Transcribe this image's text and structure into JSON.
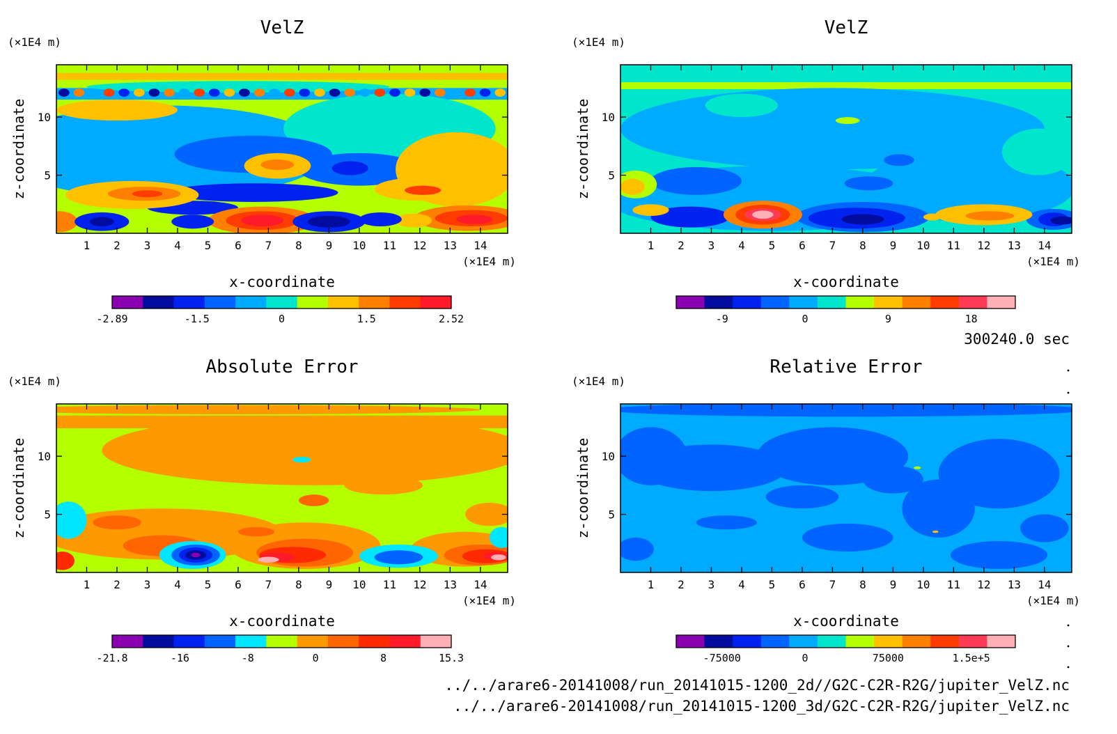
{
  "chart_data": [
    {
      "type": "heatmap",
      "title": "VelZ",
      "xlabel": "x-coordinate",
      "ylabel": "z-coordinate",
      "x_unit": "(×1E4 m)",
      "y_unit": "(×1E4 m)",
      "x_ticks": [
        "1",
        "2",
        "3",
        "4",
        "5",
        "6",
        "7",
        "8",
        "9",
        "10",
        "11",
        "12",
        "13",
        "14"
      ],
      "y_ticks": [
        "5",
        "10"
      ],
      "xlim": [
        0,
        14.9
      ],
      "ylim": [
        0,
        14.5
      ],
      "colorbar": {
        "colors": [
          "#8a00b0",
          "#000c9e",
          "#0022ee",
          "#0064ff",
          "#00aaff",
          "#00e6cc",
          "#b4ff00",
          "#ffc000",
          "#ff8000",
          "#ff3c00",
          "#ff1a2a"
        ],
        "tick_labels": [
          "-2.89",
          "-1.5",
          "0",
          "1.5",
          "2.52"
        ]
      },
      "background_color": "#b4ff00",
      "regions": [
        {
          "v": 4,
          "cx": 3.5,
          "cy": 7,
          "rx": 5.5,
          "ry": 4
        },
        {
          "v": 5,
          "cx": 11,
          "cy": 9,
          "rx": 3.5,
          "ry": 3
        },
        {
          "v": 5,
          "cx": 6,
          "cy": 12.6,
          "rx": 5,
          "ry": 0.5
        },
        {
          "v": 3,
          "cx": 6.5,
          "cy": 6.8,
          "rx": 2.6,
          "ry": 1.6
        },
        {
          "v": 3,
          "cx": 10,
          "cy": 5.5,
          "rx": 2,
          "ry": 1.4
        },
        {
          "v": 2,
          "cx": 6.5,
          "cy": 3.5,
          "rx": 2.8,
          "ry": 0.8
        },
        {
          "v": 2,
          "cx": 9.7,
          "cy": 5.6,
          "rx": 0.6,
          "ry": 0.6
        },
        {
          "v": 2,
          "cx": 4.5,
          "cy": 2.2,
          "rx": 1.5,
          "ry": 0.6
        },
        {
          "v": 7,
          "cx": 13.2,
          "cy": 5.5,
          "rx": 2,
          "ry": 3.2
        },
        {
          "v": 7,
          "cx": 2,
          "cy": 10.6,
          "rx": 2,
          "ry": 0.9
        },
        {
          "v": 7,
          "cx": 7.3,
          "cy": 5.8,
          "rx": 1.1,
          "ry": 1.1
        },
        {
          "v": 7,
          "cx": 2.5,
          "cy": 3.3,
          "rx": 2.2,
          "ry": 1.2
        },
        {
          "v": 7,
          "cx": 12,
          "cy": 3.8,
          "rx": 1.5,
          "ry": 1
        },
        {
          "v": 8,
          "cx": 7.3,
          "cy": 5.9,
          "rx": 0.55,
          "ry": 0.45
        },
        {
          "v": 8,
          "cx": 2.9,
          "cy": 3.4,
          "rx": 1.2,
          "ry": 0.6
        },
        {
          "v": 9,
          "cx": 12.1,
          "cy": 3.7,
          "rx": 0.6,
          "ry": 0.4
        },
        {
          "v": 9,
          "cx": 3,
          "cy": 3.4,
          "rx": 0.5,
          "ry": 0.3
        },
        {
          "v": 8,
          "cx": 6.8,
          "cy": 1.1,
          "rx": 1.8,
          "ry": 1.2
        },
        {
          "v": 9,
          "cx": 6.8,
          "cy": 1.1,
          "rx": 1.2,
          "ry": 0.8
        },
        {
          "v": 10,
          "cx": 6.8,
          "cy": 1.1,
          "rx": 0.7,
          "ry": 0.5
        },
        {
          "v": 8,
          "cx": 13.6,
          "cy": 1.3,
          "rx": 1.8,
          "ry": 1.1
        },
        {
          "v": 9,
          "cx": 13.7,
          "cy": 1.3,
          "rx": 1.2,
          "ry": 0.7
        },
        {
          "v": 10,
          "cx": 13.8,
          "cy": 1.2,
          "rx": 0.6,
          "ry": 0.4
        },
        {
          "v": 8,
          "cx": 0.1,
          "cy": 1,
          "rx": 0.6,
          "ry": 0.9
        },
        {
          "v": 2,
          "cx": 1.5,
          "cy": 1,
          "rx": 0.9,
          "ry": 0.8
        },
        {
          "v": 1,
          "cx": 1.5,
          "cy": 1,
          "rx": 0.4,
          "ry": 0.4
        },
        {
          "v": 2,
          "cx": 9,
          "cy": 1,
          "rx": 1.2,
          "ry": 0.9
        },
        {
          "v": 1,
          "cx": 9,
          "cy": 1,
          "rx": 0.7,
          "ry": 0.5
        },
        {
          "v": 2,
          "cx": 4.5,
          "cy": 1,
          "rx": 0.7,
          "ry": 0.6
        },
        {
          "v": 7,
          "cx": 11.8,
          "cy": 1.1,
          "rx": 0.6,
          "ry": 0.6
        },
        {
          "v": 2,
          "cx": 10.7,
          "cy": 1.2,
          "rx": 0.7,
          "ry": 0.6
        }
      ],
      "bands": [
        {
          "v": 4,
          "y0": 11.5,
          "y1": 12.6
        },
        {
          "v": 7,
          "y0": 13.2,
          "y1": 13.8
        },
        {
          "v": 6,
          "y0": 12.5,
          "y1": 13.0
        }
      ],
      "dots": {
        "y": 12.1,
        "count": 30,
        "cycle": [
          1,
          8,
          4,
          9,
          2,
          7
        ]
      }
    },
    {
      "type": "heatmap",
      "title": "VelZ",
      "xlabel": "x-coordinate",
      "ylabel": "z-coordinate",
      "x_unit": "(×1E4 m)",
      "y_unit": "(×1E4 m)",
      "x_ticks": [
        "1",
        "2",
        "3",
        "4",
        "5",
        "6",
        "7",
        "8",
        "9",
        "10",
        "11",
        "12",
        "13",
        "14"
      ],
      "y_ticks": [
        "5",
        "10"
      ],
      "xlim": [
        0,
        14.9
      ],
      "ylim": [
        0,
        14.5
      ],
      "colorbar": {
        "colors": [
          "#8a00b0",
          "#000c9e",
          "#0022ee",
          "#0064ff",
          "#00aaff",
          "#00e6cc",
          "#b4ff00",
          "#ffc000",
          "#ff8000",
          "#ff3c00",
          "#ff3a55",
          "#ffb0b4"
        ],
        "tick_labels": [
          "-9",
          "0",
          "9",
          "18"
        ]
      },
      "background_color": "#00e6cc",
      "regions": [
        {
          "v": 4,
          "cx": 7,
          "cy": 9,
          "rx": 7,
          "ry": 3.5
        },
        {
          "v": 4,
          "cx": 5,
          "cy": 3,
          "rx": 5.5,
          "ry": 2.8
        },
        {
          "v": 4,
          "cx": 11.5,
          "cy": 4,
          "rx": 3.5,
          "ry": 3
        },
        {
          "v": 5,
          "cx": 7,
          "cy": 14,
          "rx": 8,
          "ry": 0.5
        },
        {
          "v": 5,
          "cx": 13.8,
          "cy": 7,
          "rx": 1.2,
          "ry": 2
        },
        {
          "v": 5,
          "cx": 4,
          "cy": 11,
          "rx": 1.2,
          "ry": 1
        },
        {
          "v": 3,
          "cx": 2.5,
          "cy": 4.5,
          "rx": 1.5,
          "ry": 1.2
        },
        {
          "v": 3,
          "cx": 8,
          "cy": 1.4,
          "rx": 2.2,
          "ry": 1.3
        },
        {
          "v": 3,
          "cx": 14.3,
          "cy": 1.2,
          "rx": 0.9,
          "ry": 0.9
        },
        {
          "v": 3,
          "cx": 8.2,
          "cy": 4.3,
          "rx": 0.8,
          "ry": 0.6
        },
        {
          "v": 3,
          "cx": 9.2,
          "cy": 6.3,
          "rx": 0.5,
          "ry": 0.5
        },
        {
          "v": 2,
          "cx": 7.8,
          "cy": 1.3,
          "rx": 1.6,
          "ry": 0.9
        },
        {
          "v": 2,
          "cx": 2.3,
          "cy": 1.4,
          "rx": 1.3,
          "ry": 0.9
        },
        {
          "v": 2,
          "cx": 14.3,
          "cy": 1.2,
          "rx": 0.5,
          "ry": 0.6
        },
        {
          "v": 1,
          "cx": 14.6,
          "cy": 1.1,
          "rx": 0.4,
          "ry": 0.35
        },
        {
          "v": 1,
          "cx": 8,
          "cy": 1.2,
          "rx": 0.7,
          "ry": 0.45
        },
        {
          "v": 6,
          "cx": 0.5,
          "cy": 4.2,
          "rx": 0.7,
          "ry": 1.2
        },
        {
          "v": 7,
          "cx": 0.4,
          "cy": 4,
          "rx": 0.4,
          "ry": 0.7
        },
        {
          "v": 7,
          "cx": 12,
          "cy": 1.6,
          "rx": 1.6,
          "ry": 0.9
        },
        {
          "v": 8,
          "cx": 12.2,
          "cy": 1.5,
          "rx": 0.8,
          "ry": 0.4
        },
        {
          "v": 7,
          "cx": 1,
          "cy": 2,
          "rx": 0.6,
          "ry": 0.5
        },
        {
          "v": 8,
          "cx": 4.7,
          "cy": 1.6,
          "rx": 1.3,
          "ry": 1.2
        },
        {
          "v": 9,
          "cx": 4.7,
          "cy": 1.6,
          "rx": 0.9,
          "ry": 0.85
        },
        {
          "v": 10,
          "cx": 4.7,
          "cy": 1.6,
          "rx": 0.6,
          "ry": 0.55
        },
        {
          "v": 11,
          "cx": 4.7,
          "cy": 1.6,
          "rx": 0.35,
          "ry": 0.35
        },
        {
          "v": 7,
          "cx": 10.3,
          "cy": 1.4,
          "rx": 0.3,
          "ry": 0.3
        },
        {
          "v": 6,
          "cx": 7.5,
          "cy": 9.7,
          "rx": 0.4,
          "ry": 0.3
        }
      ],
      "bands": [
        {
          "v": 6,
          "y0": 12.4,
          "y1": 13.0
        }
      ],
      "dots": null
    },
    {
      "type": "heatmap",
      "title": "Absolute Error",
      "xlabel": "x-coordinate",
      "ylabel": "z-coordinate",
      "x_unit": "(×1E4 m)",
      "y_unit": "(×1E4 m)",
      "x_ticks": [
        "1",
        "2",
        "3",
        "4",
        "5",
        "6",
        "7",
        "8",
        "9",
        "10",
        "11",
        "12",
        "13",
        "14"
      ],
      "y_ticks": [
        "5",
        "10"
      ],
      "xlim": [
        0,
        14.9
      ],
      "ylim": [
        0,
        14.5
      ],
      "colorbar": {
        "colors": [
          "#8a00b0",
          "#000c9e",
          "#0022ee",
          "#0064ff",
          "#00e6ff",
          "#b4ff00",
          "#ff9900",
          "#ff6600",
          "#ff2a00",
          "#ff1a2a",
          "#ffb0b4"
        ],
        "tick_labels": [
          "-21.8",
          "-16",
          "-8",
          "0",
          "8",
          "15.3"
        ]
      },
      "background_color": "#b4ff00",
      "regions": [
        {
          "v": 6,
          "cx": 8.5,
          "cy": 10.5,
          "rx": 7,
          "ry": 3
        },
        {
          "v": 6,
          "cx": 3.5,
          "cy": 3.3,
          "rx": 4,
          "ry": 2.2
        },
        {
          "v": 6,
          "cx": 8.2,
          "cy": 2.3,
          "rx": 2.5,
          "ry": 2
        },
        {
          "v": 6,
          "cx": 13.5,
          "cy": 2,
          "rx": 1.8,
          "ry": 1.5
        },
        {
          "v": 6,
          "cx": 10.8,
          "cy": 7.5,
          "rx": 1.3,
          "ry": 0.8
        },
        {
          "v": 6,
          "cx": 14.3,
          "cy": 5,
          "rx": 0.8,
          "ry": 1
        },
        {
          "v": 6,
          "cx": 6,
          "cy": 14,
          "rx": 8,
          "ry": 0.4
        },
        {
          "v": 7,
          "cx": 3.5,
          "cy": 2.3,
          "rx": 1.3,
          "ry": 0.9
        },
        {
          "v": 7,
          "cx": 2,
          "cy": 4.3,
          "rx": 0.8,
          "ry": 0.6
        },
        {
          "v": 7,
          "cx": 8.2,
          "cy": 1.7,
          "rx": 1.6,
          "ry": 1.2
        },
        {
          "v": 7,
          "cx": 8.5,
          "cy": 6.2,
          "rx": 0.5,
          "ry": 0.5
        },
        {
          "v": 7,
          "cx": 14,
          "cy": 1.5,
          "rx": 1.2,
          "ry": 0.9
        },
        {
          "v": 7,
          "cx": 6.6,
          "cy": 3.5,
          "rx": 0.6,
          "ry": 0.4
        },
        {
          "v": 8,
          "cx": 7.8,
          "cy": 1.5,
          "rx": 1.1,
          "ry": 0.7
        },
        {
          "v": 8,
          "cx": 14.2,
          "cy": 1.4,
          "rx": 0.8,
          "ry": 0.6
        },
        {
          "v": 8,
          "cx": 0.2,
          "cy": 1,
          "rx": 0.4,
          "ry": 0.8
        },
        {
          "v": 9,
          "cx": 7.3,
          "cy": 1.3,
          "rx": 0.6,
          "ry": 0.4
        },
        {
          "v": 9,
          "cx": 14.5,
          "cy": 1.4,
          "rx": 0.4,
          "ry": 0.35
        },
        {
          "v": 10,
          "cx": 7,
          "cy": 1.1,
          "rx": 0.35,
          "ry": 0.25
        },
        {
          "v": 10,
          "cx": 14.6,
          "cy": 1.3,
          "rx": 0.25,
          "ry": 0.25
        },
        {
          "v": 4,
          "cx": 0.4,
          "cy": 4.5,
          "rx": 0.6,
          "ry": 1.6
        },
        {
          "v": 4,
          "cx": 14.7,
          "cy": 3,
          "rx": 0.4,
          "ry": 0.9
        },
        {
          "v": 4,
          "cx": 11.3,
          "cy": 1.4,
          "rx": 1.3,
          "ry": 1
        },
        {
          "v": 4,
          "cx": 4.5,
          "cy": 1.5,
          "rx": 1.1,
          "ry": 1.2
        },
        {
          "v": 4,
          "cx": 8.1,
          "cy": 9.7,
          "rx": 0.3,
          "ry": 0.25
        },
        {
          "v": 3,
          "cx": 11.3,
          "cy": 1.3,
          "rx": 0.8,
          "ry": 0.6
        },
        {
          "v": 3,
          "cx": 4.6,
          "cy": 1.5,
          "rx": 0.8,
          "ry": 0.9
        },
        {
          "v": 2,
          "cx": 4.6,
          "cy": 1.5,
          "rx": 0.55,
          "ry": 0.65
        },
        {
          "v": 1,
          "cx": 4.6,
          "cy": 1.5,
          "rx": 0.35,
          "ry": 0.4
        },
        {
          "v": 0,
          "cx": 4.6,
          "cy": 1.5,
          "rx": 0.15,
          "ry": 0.2
        }
      ],
      "bands": [
        {
          "v": 6,
          "y0": 12.4,
          "y1": 13.5
        }
      ],
      "dots": null
    },
    {
      "type": "heatmap",
      "title": "Relative Error",
      "xlabel": "x-coordinate",
      "ylabel": "z-coordinate",
      "x_unit": "(×1E4 m)",
      "y_unit": "(×1E4 m)",
      "x_ticks": [
        "1",
        "2",
        "3",
        "4",
        "5",
        "6",
        "7",
        "8",
        "9",
        "10",
        "11",
        "12",
        "13",
        "14"
      ],
      "y_ticks": [
        "5",
        "10"
      ],
      "xlim": [
        0,
        14.9
      ],
      "ylim": [
        0,
        14.5
      ],
      "colorbar": {
        "colors": [
          "#8a00b0",
          "#000c9e",
          "#0022ee",
          "#0064ff",
          "#00aaff",
          "#00e6cc",
          "#b4ff00",
          "#ffc000",
          "#ff8000",
          "#ff3c00",
          "#ff3a55",
          "#ffb0b4"
        ],
        "tick_labels": [
          "-75000",
          "0",
          "75000",
          "1.5e+5"
        ]
      },
      "background_color": "#00aaff",
      "regions": [
        {
          "v": 3,
          "cx": 7.5,
          "cy": 14,
          "rx": 8,
          "ry": 0.6
        },
        {
          "v": 3,
          "cx": 7,
          "cy": 10,
          "rx": 2.5,
          "ry": 2.5
        },
        {
          "v": 3,
          "cx": 3,
          "cy": 9,
          "rx": 2.5,
          "ry": 2
        },
        {
          "v": 3,
          "cx": 12.5,
          "cy": 8.5,
          "rx": 2,
          "ry": 3
        },
        {
          "v": 3,
          "cx": 10.5,
          "cy": 5.5,
          "rx": 1.2,
          "ry": 2.5
        },
        {
          "v": 3,
          "cx": 1,
          "cy": 10,
          "rx": 1.2,
          "ry": 2.5
        },
        {
          "v": 3,
          "cx": 7.5,
          "cy": 3,
          "rx": 1.5,
          "ry": 1.2
        },
        {
          "v": 3,
          "cx": 3.5,
          "cy": 4.3,
          "rx": 1,
          "ry": 0.6
        },
        {
          "v": 3,
          "cx": 12.5,
          "cy": 1.5,
          "rx": 1.6,
          "ry": 1.2
        },
        {
          "v": 3,
          "cx": 0.5,
          "cy": 2,
          "rx": 0.6,
          "ry": 1
        },
        {
          "v": 3,
          "cx": 6,
          "cy": 6.5,
          "rx": 1.2,
          "ry": 1
        },
        {
          "v": 3,
          "cx": 9,
          "cy": 8,
          "rx": 1,
          "ry": 1.2
        },
        {
          "v": 3,
          "cx": 14,
          "cy": 3.8,
          "rx": 0.8,
          "ry": 1.2
        },
        {
          "v": 6,
          "cx": 9.8,
          "cy": 9.0,
          "rx": 0.12,
          "ry": 0.12
        },
        {
          "v": 7,
          "cx": 10.4,
          "cy": 3.5,
          "rx": 0.1,
          "ry": 0.1
        }
      ],
      "bands": [
        {
          "v": 4,
          "y0": 13.0,
          "y1": 13.3
        }
      ],
      "dots": null
    }
  ],
  "annotations": {
    "time": "300240.0 sec",
    "file_2d": "../../arare6-20141008/run_20141015-1200_2d//G2C-C2R-R2G/jupiter_VelZ.nc",
    "file_3d": "../../arare6-20141008/run_20141015-1200_3d/G2C-C2R-R2G/jupiter_VelZ.nc"
  }
}
